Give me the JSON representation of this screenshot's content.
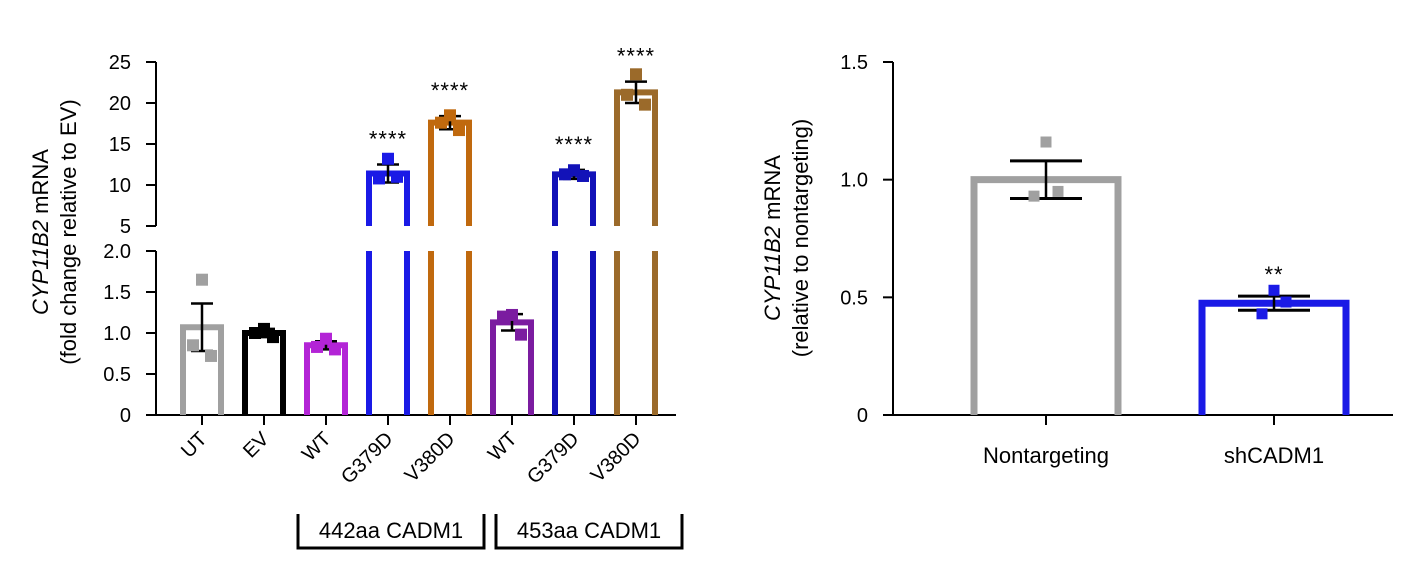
{
  "chart_data": [
    {
      "type": "bar",
      "ylabel_gene": "CYP11B2",
      "ylabel_rest": " mRNA",
      "ylabel_line2": "(fold change relative to EV)",
      "ylim": [
        0,
        25
      ],
      "axis_break": {
        "lower_segment": [
          0,
          2.0
        ],
        "upper_segment": [
          5,
          25
        ]
      },
      "lower_ticks": [
        "0",
        "0.5",
        "1.0",
        "1.5",
        "2.0"
      ],
      "upper_ticks": [
        "5",
        "10",
        "15",
        "20",
        "25"
      ],
      "categories": [
        "UT",
        "EV",
        "WT",
        "G379D",
        "V380D",
        "WT",
        "G379D",
        "V380D"
      ],
      "values": [
        1.07,
        1.0,
        0.85,
        11.4,
        17.6,
        1.13,
        11.3,
        21.3
      ],
      "errors": [
        0.29,
        0.05,
        0.05,
        1.1,
        0.8,
        0.1,
        0.55,
        1.3
      ],
      "points": [
        [
          1.65,
          0.85,
          0.72
        ],
        [
          1.05,
          1.0,
          0.95
        ],
        [
          0.93,
          0.83,
          0.8
        ],
        [
          13.2,
          10.8,
          11.0
        ],
        [
          18.5,
          17.6,
          16.7
        ],
        [
          1.22,
          1.2,
          0.98
        ],
        [
          11.8,
          11.3,
          11.1
        ],
        [
          23.5,
          21.0,
          19.8
        ]
      ],
      "colors": [
        "#a0a0a0",
        "#000000",
        "#b324d6",
        "#1a1ae6",
        "#c0690e",
        "#7b1ca0",
        "#1212b8",
        "#9b6a2a"
      ],
      "significance": [
        "",
        "",
        "",
        "****",
        "****",
        "",
        "****",
        "****"
      ],
      "groups": [
        {
          "label": "442aa CADM1"
        },
        {
          "label": "453aa CADM1"
        }
      ]
    },
    {
      "type": "bar",
      "ylabel_gene": "CYP11B2",
      "ylabel_rest": " mRNA",
      "ylabel_line2": "(relative to nontargeting)",
      "ylim": [
        0,
        1.5
      ],
      "ticks": [
        "0",
        "0.5",
        "1.0",
        "1.5"
      ],
      "categories": [
        "Nontargeting",
        "shCADM1"
      ],
      "values": [
        1.0,
        0.475
      ],
      "errors": [
        0.08,
        0.03
      ],
      "points": [
        [
          1.16,
          0.93,
          0.95
        ],
        [
          0.53,
          0.43,
          0.48
        ]
      ],
      "colors": [
        "#a0a0a0",
        "#1a1ae6"
      ],
      "significance": [
        "",
        "**"
      ]
    }
  ]
}
